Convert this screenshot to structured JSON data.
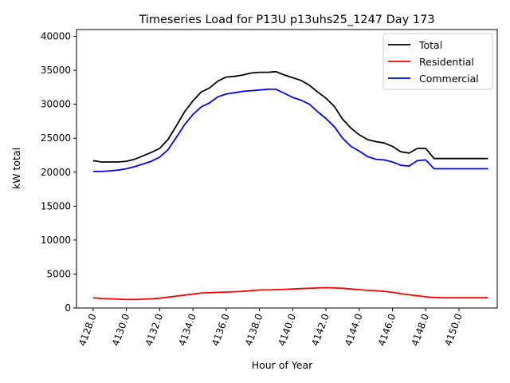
{
  "chart_data": {
    "type": "line",
    "title": "Timeseries Load for P13U p13uhs25_1247  Day 173",
    "xlabel": "Hour of Year",
    "ylabel": "kW total",
    "xlim": [
      4127.0,
      4152.3
    ],
    "ylim": [
      0,
      41000
    ],
    "grid": false,
    "legend_position": "top-right",
    "x_tick_values": [
      4128,
      4130,
      4132,
      4134,
      4136,
      4138,
      4140,
      4142,
      4144,
      4146,
      4148,
      4150
    ],
    "x_tick_labels": [
      "4128.0",
      "4130.0",
      "4132.0",
      "4134.0",
      "4136.0",
      "4138.0",
      "4140.0",
      "4142.0",
      "4144.0",
      "4146.0",
      "4148.0",
      "4150.0"
    ],
    "y_tick_values": [
      0,
      5000,
      10000,
      15000,
      20000,
      25000,
      30000,
      35000,
      40000
    ],
    "y_tick_labels": [
      "0",
      "5000",
      "10000",
      "15000",
      "20000",
      "25000",
      "30000",
      "35000",
      "40000"
    ],
    "x": [
      4128.0,
      4128.5,
      4129.0,
      4129.5,
      4130.0,
      4130.5,
      4131.0,
      4131.5,
      4132.0,
      4132.5,
      4133.0,
      4133.5,
      4134.0,
      4134.5,
      4135.0,
      4135.5,
      4136.0,
      4136.5,
      4137.0,
      4137.5,
      4138.0,
      4138.5,
      4139.0,
      4139.5,
      4140.0,
      4140.5,
      4141.0,
      4141.5,
      4142.0,
      4142.5,
      4143.0,
      4143.5,
      4144.0,
      4144.5,
      4145.0,
      4145.5,
      4146.0,
      4146.5,
      4147.0,
      4147.5,
      4148.0,
      4148.5,
      4149.0,
      4149.5,
      4150.0,
      4150.5,
      4151.0,
      4151.5,
      4151.75
    ],
    "series": [
      {
        "name": "Total",
        "color": "#000000",
        "values": [
          21700,
          21500,
          21500,
          21500,
          21600,
          21900,
          22400,
          22900,
          23500,
          24800,
          26800,
          28900,
          30500,
          31800,
          32400,
          33400,
          34000,
          34100,
          34300,
          34600,
          34700,
          34700,
          34800,
          34300,
          33900,
          33500,
          32800,
          31800,
          30900,
          29700,
          27800,
          26500,
          25500,
          24800,
          24500,
          24300,
          23800,
          23000,
          22800,
          23500,
          23500,
          22000,
          22000,
          22000,
          22000,
          22000,
          22000,
          22000,
          22000
        ]
      },
      {
        "name": "Residential",
        "color": "#ff0000",
        "values": [
          1500,
          1400,
          1350,
          1300,
          1250,
          1250,
          1300,
          1350,
          1450,
          1600,
          1750,
          1900,
          2050,
          2200,
          2250,
          2300,
          2350,
          2400,
          2450,
          2550,
          2650,
          2650,
          2700,
          2750,
          2800,
          2850,
          2900,
          2950,
          3000,
          2950,
          2900,
          2800,
          2700,
          2600,
          2550,
          2450,
          2300,
          2100,
          1950,
          1800,
          1650,
          1550,
          1500,
          1500,
          1500,
          1500,
          1500,
          1500,
          1500
        ]
      },
      {
        "name": "Commercial",
        "color": "#0000ff",
        "values": [
          20100,
          20100,
          20200,
          20300,
          20500,
          20800,
          21200,
          21600,
          22200,
          23300,
          25100,
          27000,
          28500,
          29600,
          30200,
          31100,
          31500,
          31700,
          31900,
          32000,
          32100,
          32200,
          32200,
          31600,
          31000,
          30600,
          30000,
          28900,
          27900,
          26700,
          25000,
          23800,
          23100,
          22300,
          21900,
          21800,
          21500,
          21000,
          20900,
          21700,
          21800,
          20500,
          20500,
          20500,
          20500,
          20500,
          20500,
          20500,
          20500
        ]
      }
    ]
  }
}
